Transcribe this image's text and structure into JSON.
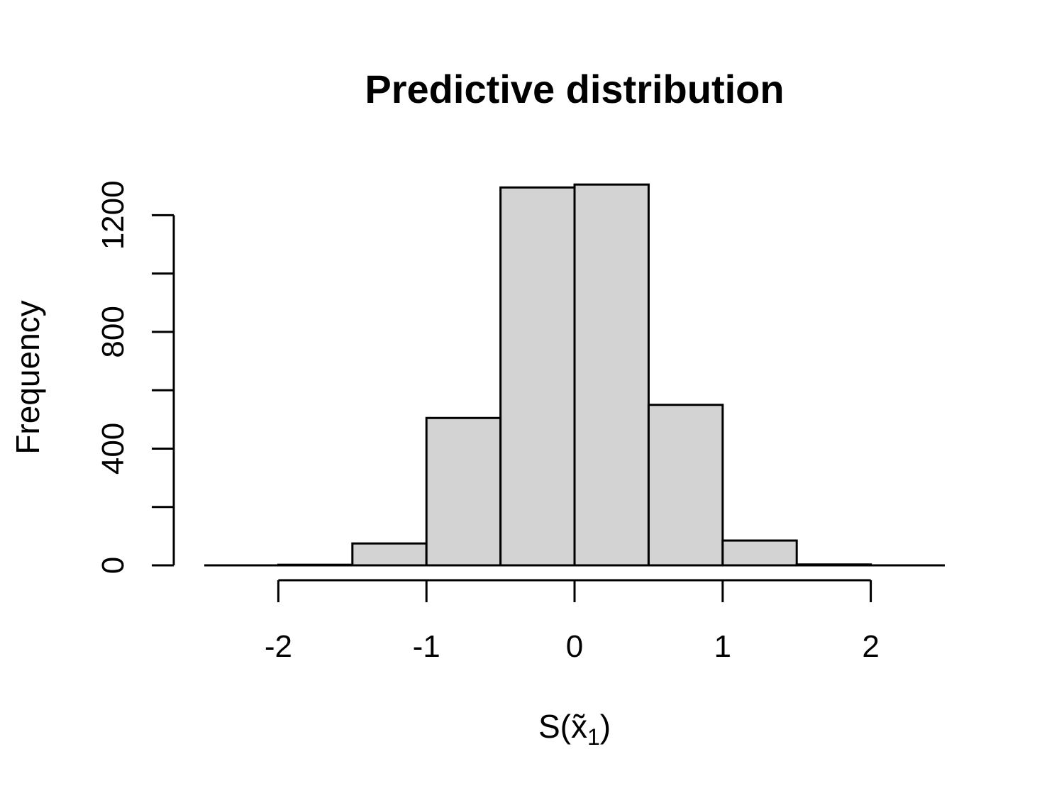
{
  "chart_data": {
    "type": "bar",
    "title": "Predictive distribution",
    "xlabel": "S(x̃₁)",
    "ylabel": "Frequency",
    "bins": [
      {
        "from": -2.5,
        "to": -2.0,
        "count": 0
      },
      {
        "from": -2.0,
        "to": -1.5,
        "count": 2
      },
      {
        "from": -1.5,
        "to": -1.0,
        "count": 75
      },
      {
        "from": -1.0,
        "to": -0.5,
        "count": 505
      },
      {
        "from": -0.5,
        "to": 0.0,
        "count": 1295
      },
      {
        "from": 0.0,
        "to": 0.5,
        "count": 1305
      },
      {
        "from": 0.5,
        "to": 1.0,
        "count": 550
      },
      {
        "from": 1.0,
        "to": 1.5,
        "count": 85
      },
      {
        "from": 1.5,
        "to": 2.0,
        "count": 3
      },
      {
        "from": 2.0,
        "to": 2.5,
        "count": 0
      }
    ],
    "xlim": [
      -2.5,
      2.5
    ],
    "ylim": [
      0,
      1320
    ],
    "x_ticks": [
      -2,
      -1,
      0,
      1,
      2
    ],
    "x_tick_labels": [
      "-2",
      "-1",
      "0",
      "1",
      "2"
    ],
    "y_ticks": [
      0,
      200,
      400,
      600,
      800,
      1000,
      1200
    ],
    "y_tick_labels": [
      "0",
      "",
      "400",
      "",
      "800",
      "",
      "1200"
    ],
    "bar_fill": "#d3d3d3",
    "grid": false,
    "legend": "none"
  }
}
